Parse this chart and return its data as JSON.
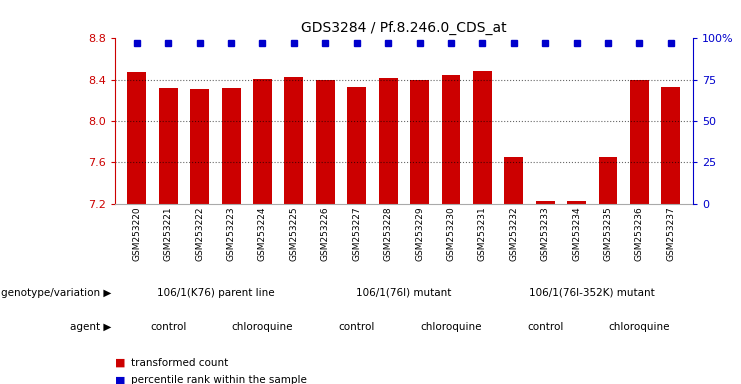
{
  "title": "GDS3284 / Pf.8.246.0_CDS_at",
  "samples": [
    "GSM253220",
    "GSM253221",
    "GSM253222",
    "GSM253223",
    "GSM253224",
    "GSM253225",
    "GSM253226",
    "GSM253227",
    "GSM253228",
    "GSM253229",
    "GSM253230",
    "GSM253231",
    "GSM253232",
    "GSM253233",
    "GSM253234",
    "GSM253235",
    "GSM253236",
    "GSM253237"
  ],
  "bar_values": [
    8.47,
    8.32,
    8.31,
    8.32,
    8.41,
    8.43,
    8.4,
    8.33,
    8.42,
    8.4,
    8.45,
    8.48,
    7.65,
    7.22,
    7.22,
    7.65,
    8.4,
    8.33
  ],
  "ylim_min": 7.2,
  "ylim_max": 8.8,
  "yticks": [
    7.2,
    7.6,
    8.0,
    8.4,
    8.8
  ],
  "right_yticks": [
    0,
    25,
    50,
    75,
    100
  ],
  "bar_color": "#cc0000",
  "percentile_color": "#0000cc",
  "bar_width": 0.6,
  "genotype_groups": [
    {
      "label": "106/1(K76) parent line",
      "start": 0,
      "end": 5,
      "color": "#ccffcc"
    },
    {
      "label": "106/1(76I) mutant",
      "start": 6,
      "end": 11,
      "color": "#66dd66"
    },
    {
      "label": "106/1(76I-352K) mutant",
      "start": 12,
      "end": 17,
      "color": "#44cc44"
    }
  ],
  "agent_groups": [
    {
      "label": "control",
      "start": 0,
      "end": 2,
      "color": "#ffaaff"
    },
    {
      "label": "chloroquine",
      "start": 3,
      "end": 5,
      "color": "#dd44dd"
    },
    {
      "label": "control",
      "start": 6,
      "end": 8,
      "color": "#ffaaff"
    },
    {
      "label": "chloroquine",
      "start": 9,
      "end": 11,
      "color": "#dd44dd"
    },
    {
      "label": "control",
      "start": 12,
      "end": 14,
      "color": "#ffaaff"
    },
    {
      "label": "chloroquine",
      "start": 15,
      "end": 17,
      "color": "#dd44dd"
    }
  ],
  "genotype_label": "genotype/variation",
  "agent_label": "agent",
  "legend_items": [
    {
      "label": "transformed count",
      "color": "#cc0000"
    },
    {
      "label": "percentile rank within the sample",
      "color": "#0000cc"
    }
  ],
  "bg_color": "#ffffff",
  "axis_color_left": "#cc0000",
  "axis_color_right": "#0000cc",
  "tick_bg_color": "#cccccc"
}
